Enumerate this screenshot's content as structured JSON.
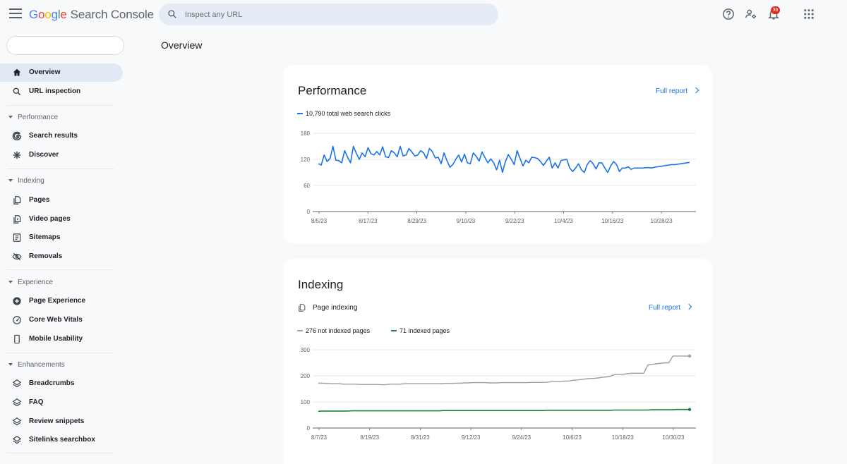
{
  "app": {
    "brand_letters": [
      "G",
      "o",
      "o",
      "g",
      "l",
      "e"
    ],
    "product": "Search Console",
    "notification_count": "36"
  },
  "search": {
    "placeholder": "Inspect any URL"
  },
  "sidebar": {
    "top_items": [
      {
        "label": "Overview",
        "icon": "home-icon",
        "active": true
      },
      {
        "label": "URL inspection",
        "icon": "search-icon"
      }
    ],
    "sections": [
      {
        "label": "Performance",
        "items": [
          {
            "label": "Search results",
            "icon": "google-g-icon"
          },
          {
            "label": "Discover",
            "icon": "asterisk-icon"
          }
        ]
      },
      {
        "label": "Indexing",
        "items": [
          {
            "label": "Pages",
            "icon": "pages-icon"
          },
          {
            "label": "Video pages",
            "icon": "video-pages-icon"
          },
          {
            "label": "Sitemaps",
            "icon": "sitemap-icon"
          },
          {
            "label": "Removals",
            "icon": "eye-off-icon"
          }
        ]
      },
      {
        "label": "Experience",
        "items": [
          {
            "label": "Page Experience",
            "icon": "plus-circle-icon"
          },
          {
            "label": "Core Web Vitals",
            "icon": "gauge-icon"
          },
          {
            "label": "Mobile Usability",
            "icon": "phone-icon"
          }
        ]
      },
      {
        "label": "Enhancements",
        "items": [
          {
            "label": "Breadcrumbs",
            "icon": "layers-icon"
          },
          {
            "label": "FAQ",
            "icon": "layers-icon"
          },
          {
            "label": "Review snippets",
            "icon": "layers-icon"
          },
          {
            "label": "Sitelinks searchbox",
            "icon": "layers-icon"
          }
        ]
      }
    ]
  },
  "main": {
    "title": "Overview",
    "performance": {
      "title": "Performance",
      "full_report": "Full report",
      "legend": "10,790 total web search clicks"
    },
    "indexing": {
      "title": "Indexing",
      "subhead": "Page indexing",
      "full_report": "Full report",
      "legend_not_indexed": "276 not indexed pages",
      "legend_indexed": "71 indexed pages"
    }
  },
  "colors": {
    "clicks": "#1a73e8",
    "not_indexed": "#9aa0a6",
    "indexed": "#188038"
  },
  "chart_data": [
    {
      "type": "line",
      "x_ticks": [
        "8/5/23",
        "8/17/23",
        "8/29/23",
        "9/10/23",
        "9/22/23",
        "10/4/23",
        "10/16/23",
        "10/28/23"
      ],
      "y_ticks": [
        "180",
        "120",
        "60",
        "0"
      ],
      "ylim": [
        0,
        180
      ],
      "grid": true,
      "series": [
        {
          "name": "10,790 total web search clicks",
          "values": [
            110,
            107,
            130,
            115,
            122,
            150,
            118,
            117,
            112,
            140,
            125,
            112,
            150,
            134,
            120,
            135,
            126,
            147,
            133,
            130,
            138,
            130,
            149,
            126,
            124,
            140,
            135,
            126,
            150,
            128,
            130,
            145,
            137,
            128,
            130,
            140,
            135,
            122,
            145,
            138,
            123,
            125,
            110,
            135,
            117,
            102,
            108,
            120,
            130,
            114,
            132,
            112,
            110,
            135,
            127,
            116,
            137,
            124,
            112,
            121,
            112,
            96,
            118,
            90,
            115,
            131,
            120,
            108,
            140,
            122,
            105,
            118,
            112,
            125,
            124,
            122,
            115,
            106,
            116,
            125,
            100,
            112,
            100,
            117,
            119,
            120,
            100,
            92,
            100,
            110,
            96,
            90,
            108,
            117,
            110,
            98,
            112,
            112,
            100,
            90,
            105,
            115,
            108,
            92,
            100,
            100,
            103,
            97,
            100,
            100,
            100,
            100,
            101,
            101,
            100,
            102,
            103,
            104,
            105,
            106,
            107,
            108,
            108,
            109,
            110,
            111,
            112,
            113
          ]
        }
      ]
    },
    {
      "type": "line",
      "x_ticks": [
        "8/7/23",
        "8/19/23",
        "8/31/23",
        "9/12/23",
        "9/24/23",
        "10/6/23",
        "10/18/23",
        "10/30/23"
      ],
      "y_ticks": [
        "300",
        "200",
        "100",
        "0"
      ],
      "ylim": [
        0,
        300
      ],
      "grid": true,
      "series": [
        {
          "name": "276 not indexed pages",
          "values": [
            172,
            172,
            171,
            170,
            170,
            170,
            168,
            168,
            168,
            168,
            167,
            167,
            167,
            167,
            167,
            166,
            166,
            168,
            168,
            168,
            169,
            170,
            170,
            170,
            170,
            170,
            170,
            170,
            170,
            170,
            171,
            171,
            171,
            172,
            172,
            173,
            173,
            174,
            174,
            174,
            174,
            173,
            173,
            173,
            174,
            174,
            174,
            174,
            174,
            174,
            174,
            175,
            175,
            175,
            175,
            176,
            178,
            178,
            179,
            180,
            180,
            183,
            184,
            186,
            188,
            190,
            190,
            192,
            194,
            196,
            198,
            205,
            206,
            206,
            208,
            210,
            210,
            210,
            210,
            242,
            244,
            246,
            248,
            250,
            250,
            276,
            276,
            276,
            276,
            276
          ]
        },
        {
          "name": "71 indexed pages",
          "values": [
            64,
            65,
            65,
            65,
            65,
            65,
            65,
            65,
            66,
            66,
            66,
            66,
            66,
            66,
            66,
            66,
            66,
            66,
            66,
            66,
            66,
            66,
            66,
            66,
            66,
            66,
            66,
            66,
            66,
            66,
            67,
            67,
            67,
            67,
            67,
            67,
            67,
            67,
            67,
            67,
            67,
            67,
            67,
            67,
            67,
            67,
            67,
            67,
            67,
            67,
            67,
            67,
            67,
            67,
            67,
            68,
            68,
            68,
            68,
            68,
            68,
            68,
            68,
            68,
            68,
            68,
            68,
            68,
            68,
            68,
            68,
            69,
            69,
            69,
            69,
            69,
            69,
            69,
            69,
            69,
            70,
            70,
            70,
            70,
            70,
            70,
            71,
            71,
            71,
            71
          ]
        }
      ]
    }
  ]
}
